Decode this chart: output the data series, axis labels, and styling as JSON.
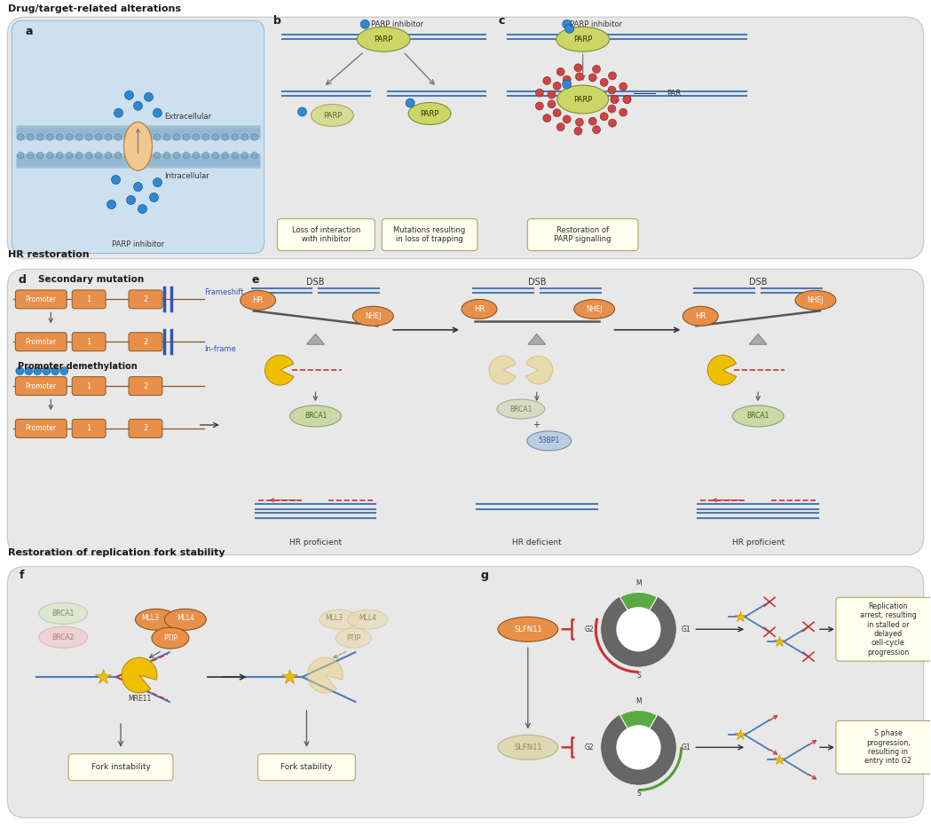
{
  "title_top": "Drug/target-related alterations",
  "title_mid": "HR restoration",
  "title_bot": "Restoration of replication fork stability",
  "bg_color": "#ffffff",
  "panel_bg": "#e8e8e8",
  "panel_a_bg": "#d8eaf5",
  "orange_color": "#E8904A",
  "yellow_green": "#ccd666",
  "blue_line": "#4a7ab5",
  "dark_blue": "#2a5080",
  "text_dark": "#2a2a2a",
  "red_color": "#cc3333",
  "green_color": "#5a9a3a",
  "gray_color": "#888888",
  "parp_color": "#c8d04a"
}
